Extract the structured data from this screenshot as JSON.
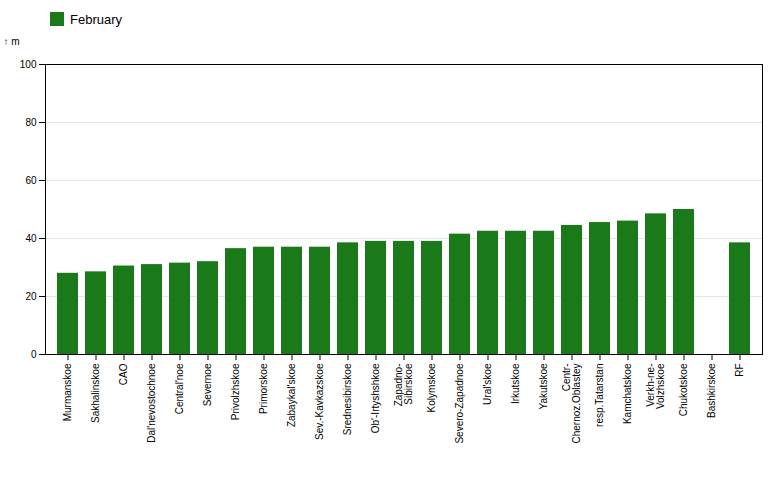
{
  "chart_data": {
    "type": "bar",
    "categories": [
      "Murmanskoe",
      "Sakhalinskoe",
      "CAO",
      "Dal'nevostochnoe",
      "Central'noe",
      "Severnoe",
      "Privolzhskoe",
      "Primorskoe",
      "Zabaykal'skoe",
      "Sev.-Kavkazskoe",
      "Srednesibirskoe",
      "Ob'-Irtyshshkoe",
      "Zapadno-\nSibirskoe",
      "Kolymskoe",
      "Severo-Zapadnoe",
      "Ural'skoe",
      "Irkutskoe",
      "Yakutskoe",
      "Centr-\nChernoz.Oblastey",
      "resp.Tatarstan",
      "Kamchatskoe",
      "Verkh-ne-\nVolzhskoe",
      "Chukotskoe",
      "Bashkirskoe",
      "RF"
    ],
    "series": [
      {
        "name": "February",
        "color": "#1a7a1a",
        "values": [
          28,
          28.5,
          30.5,
          31,
          31.5,
          32,
          36.5,
          37,
          37,
          37,
          38.5,
          39,
          39,
          39,
          41.5,
          42.5,
          42.5,
          42.5,
          44.5,
          45.5,
          46,
          48.5,
          50,
          0,
          38.5
        ]
      }
    ],
    "ylabel": "m",
    "ylim": [
      0,
      100
    ],
    "yticks": [
      0,
      20,
      40,
      60,
      80,
      100
    ],
    "grid": true,
    "legend": "upper left"
  }
}
